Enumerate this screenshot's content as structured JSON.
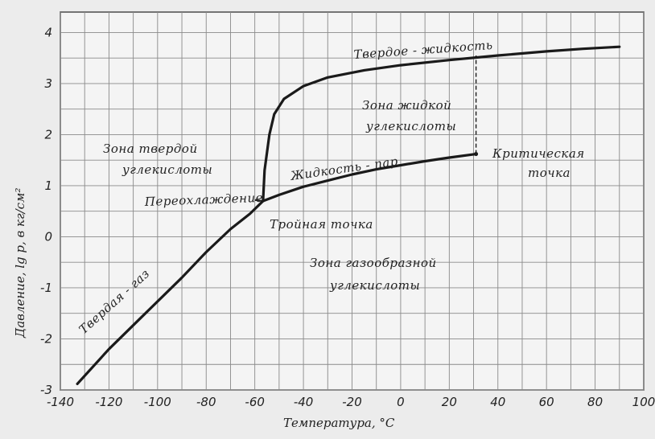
{
  "chart_data": {
    "type": "line",
    "title": "",
    "xlabel": "Температура, °С",
    "ylabel": "Давление, lg p, в кг/см²",
    "xlim": [
      -140,
      100
    ],
    "ylim": [
      -3,
      4.4
    ],
    "grid": true,
    "x_ticks": [
      "-140",
      "-120",
      "-100",
      "-80",
      "-60",
      "-40",
      "-20",
      "0",
      "20",
      "40",
      "60",
      "80",
      "100"
    ],
    "y_ticks": [
      "-3",
      "-2",
      "-1",
      "0",
      "1",
      "2",
      "3",
      "4"
    ],
    "series": [
      {
        "key": "solid-gas",
        "points": [
          [
            -133,
            -2.88
          ],
          [
            -120,
            -2.2
          ],
          [
            -105,
            -1.5
          ],
          [
            -90,
            -0.8
          ],
          [
            -80,
            -0.3
          ],
          [
            -70,
            0.15
          ],
          [
            -62,
            0.45
          ],
          [
            -56.6,
            0.7
          ]
        ]
      },
      {
        "key": "liquid-vapor",
        "points": [
          [
            -56.6,
            0.7
          ],
          [
            -50,
            0.82
          ],
          [
            -40,
            0.98
          ],
          [
            -30,
            1.1
          ],
          [
            -20,
            1.22
          ],
          [
            -10,
            1.32
          ],
          [
            0,
            1.4
          ],
          [
            10,
            1.48
          ],
          [
            20,
            1.55
          ],
          [
            31,
            1.62
          ]
        ]
      },
      {
        "key": "solid-liquid",
        "points": [
          [
            -56.6,
            0.7
          ],
          [
            -56,
            1.3
          ],
          [
            -54,
            2.0
          ],
          [
            -52,
            2.4
          ],
          [
            -48,
            2.7
          ],
          [
            -40,
            2.95
          ],
          [
            -30,
            3.12
          ],
          [
            -15,
            3.26
          ],
          [
            0,
            3.36
          ],
          [
            20,
            3.46
          ],
          [
            40,
            3.55
          ],
          [
            60,
            3.63
          ],
          [
            75,
            3.68
          ],
          [
            90,
            3.72
          ]
        ]
      }
    ],
    "subcooling_segment": [
      [
        -56.6,
        0.7
      ],
      [
        -60,
        0.72
      ]
    ],
    "critical_line": [
      [
        31,
        1.62
      ],
      [
        31,
        3.55
      ]
    ],
    "annotations": {
      "solid_liquid": "Твердое - жидкость",
      "liquid_zone_1": "Зона жидкой",
      "liquid_zone_2": "углекислоты",
      "solid_zone_1": "Зона твердой",
      "solid_zone_2": "углекислоты",
      "critical_1": "Критическая",
      "critical_2": "точка",
      "liquid_vapor": "Жидкость - пар",
      "subcooling": "Переохлаждение",
      "triple_point": "Тройная точка",
      "gas_zone_1": "Зона газообразной",
      "gas_zone_2": "углекислоты",
      "solid_gas": "Твердая - газ"
    }
  }
}
